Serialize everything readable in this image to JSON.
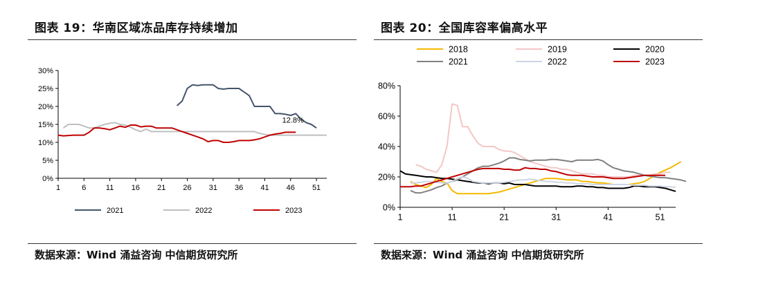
{
  "panels": [
    {
      "title": "图表 19：华南区域冻品库存持续增加",
      "source": "数据来源：Wind 涌益咨询 中信期货研究所"
    },
    {
      "title": "图表 20：全国库容率偏高水平",
      "source": "数据来源：Wind 涌益咨询 中信期货研究所"
    }
  ],
  "chart_data": [
    {
      "type": "line",
      "title": "",
      "xlabel": "",
      "ylabel": "",
      "x_ticks": [
        1,
        6,
        11,
        16,
        21,
        26,
        31,
        36,
        41,
        46,
        51
      ],
      "y_ticks": [
        "0%",
        "5%",
        "10%",
        "15%",
        "20%",
        "25%",
        "30%"
      ],
      "xlim": [
        1,
        53
      ],
      "ylim": [
        0,
        30
      ],
      "legend_position": "bottom",
      "annotation": {
        "text": "12.8%",
        "x": 47,
        "y": 12.8
      },
      "series": [
        {
          "name": "2021",
          "color": "#44546a",
          "start_week": 24,
          "values": [
            20.2,
            21.5,
            25,
            26,
            25.8,
            26,
            26,
            26,
            25,
            24.8,
            25,
            25,
            25,
            24,
            23,
            20,
            20,
            20,
            20,
            18,
            18,
            17.8,
            17.5,
            18,
            16.5,
            15.5,
            15,
            14
          ]
        },
        {
          "name": "2022",
          "color": "#bfbfbf",
          "start_week": 2,
          "values": [
            14,
            15,
            15,
            15,
            14.5,
            14,
            14,
            14.5,
            15,
            15.3,
            15.5,
            15,
            14.8,
            14.2,
            13.5,
            13,
            13.7,
            13,
            13,
            13,
            13,
            13,
            13,
            13,
            13,
            13,
            13,
            13,
            13,
            13,
            13,
            13,
            13,
            13,
            13,
            13,
            13,
            13,
            12.5,
            12.2,
            12,
            12,
            12,
            12,
            12,
            12,
            12,
            12,
            12,
            12,
            12,
            12
          ]
        },
        {
          "name": "2023",
          "color": "#c00000",
          "start_week": 1,
          "values": [
            12,
            11.8,
            11.9,
            12,
            12,
            12,
            12.8,
            14,
            14,
            13.8,
            13.5,
            14,
            14.5,
            14.2,
            14.8,
            14.8,
            14.3,
            14.5,
            14.5,
            14,
            14,
            14,
            14,
            13.5,
            13,
            12.5,
            12,
            11.5,
            11,
            10.2,
            10.5,
            10.5,
            10,
            10,
            10.2,
            10.5,
            10.5,
            10.5,
            10.7,
            11,
            11.5,
            12,
            12.3,
            12.5,
            12.8,
            12.8,
            12.8
          ]
        }
      ]
    },
    {
      "type": "line",
      "title": "",
      "xlabel": "",
      "ylabel": "",
      "x_ticks": [
        1,
        11,
        21,
        31,
        41,
        51
      ],
      "y_ticks": [
        "0%",
        "20%",
        "40%",
        "60%",
        "80%"
      ],
      "xlim": [
        1,
        54
      ],
      "ylim": [
        0,
        80
      ],
      "legend_position": "top",
      "series": [
        {
          "name": "2018",
          "color": "#f5b800",
          "start_week": 3,
          "values": [
            17,
            15,
            14,
            13,
            15,
            19,
            17,
            16,
            11,
            9,
            9,
            9,
            9,
            9,
            9,
            9,
            9.5,
            10,
            11,
            12,
            13,
            14,
            15,
            16,
            17,
            18,
            19,
            19,
            19,
            18.5,
            18,
            18,
            18,
            17,
            17,
            16.5,
            16,
            16,
            15.5,
            15,
            15,
            15,
            15,
            15.5,
            16,
            17,
            19,
            21,
            23,
            24.5,
            26,
            28,
            30
          ]
        },
        {
          "name": "2019",
          "color": "#f4c6c6",
          "start_week": 4,
          "values": [
            28,
            27,
            25,
            24,
            23,
            28,
            40,
            68,
            67,
            53,
            53,
            47,
            42,
            40,
            40,
            40,
            38,
            37,
            37,
            36,
            34,
            32,
            30,
            29,
            28,
            27,
            26,
            26,
            25,
            25,
            24,
            23,
            22,
            22,
            22,
            21,
            21,
            20,
            20,
            20,
            20,
            20,
            21,
            21,
            21,
            21,
            22,
            22,
            23,
            23
          ]
        },
        {
          "name": "2020",
          "color": "#000000",
          "start_week": 1,
          "values": [
            24,
            22,
            21.5,
            21,
            20.5,
            20,
            20,
            19.5,
            19,
            19,
            18.5,
            18,
            17.5,
            17,
            16.5,
            16,
            16,
            15.5,
            16,
            16,
            15.5,
            16,
            15,
            15,
            15,
            14.5,
            14,
            14,
            14,
            14,
            14,
            13.5,
            13.5,
            13.5,
            14,
            14,
            13.5,
            13.5,
            13,
            13,
            12.5,
            12.5,
            12.5,
            12.5,
            13,
            14,
            14,
            13.5,
            13.5,
            13.5,
            13,
            12.5,
            11.5,
            10.5
          ]
        },
        {
          "name": "2021",
          "color": "#808080",
          "start_week": 3,
          "values": [
            11,
            9.5,
            9.5,
            10.5,
            11.5,
            13,
            14,
            16,
            17,
            18,
            20,
            22,
            24,
            26,
            27,
            27,
            28,
            29,
            30.5,
            32.5,
            32.5,
            31.5,
            31,
            30.5,
            31,
            31,
            31,
            31.5,
            31.5,
            31,
            30.5,
            30,
            31,
            31,
            31,
            31,
            31.5,
            30.5,
            28,
            26,
            25,
            24,
            23.5,
            23,
            22,
            21,
            20.5,
            20,
            19.5,
            19.5,
            19,
            18.5,
            18,
            17
          ]
        },
        {
          "name": "2022",
          "color": "#cdd6e3",
          "start_week": 3,
          "values": [
            16,
            16,
            16.5,
            17,
            17,
            16.5,
            16,
            16,
            17,
            19,
            20,
            19,
            17,
            16.5,
            16,
            16,
            16,
            16,
            16.5,
            17,
            17.5,
            18,
            18,
            18.5,
            18,
            17.5,
            17,
            17,
            16.5,
            16.5,
            16,
            16,
            15.5,
            15.5,
            15.5,
            15,
            15,
            15,
            15,
            15,
            15,
            15,
            15,
            14.5,
            14.5,
            14.5,
            14,
            14,
            14,
            13.5,
            13.5,
            13
          ]
        },
        {
          "name": "2023",
          "color": "#c00000",
          "start_week": 1,
          "values": [
            13.5,
            13.5,
            13.5,
            14,
            14,
            15,
            16,
            17,
            18,
            19,
            20,
            21,
            22,
            23,
            24,
            25,
            25.5,
            25.5,
            25.5,
            25.5,
            25,
            25,
            24.5,
            24.5,
            26,
            25.5,
            25.5,
            25,
            25,
            24,
            23.5,
            22.5,
            21.5,
            21,
            21,
            21,
            20.5,
            20,
            20,
            20,
            19.5,
            19,
            19,
            19,
            19.5,
            20,
            20.5,
            21,
            21,
            21,
            21,
            21
          ]
        }
      ]
    }
  ]
}
